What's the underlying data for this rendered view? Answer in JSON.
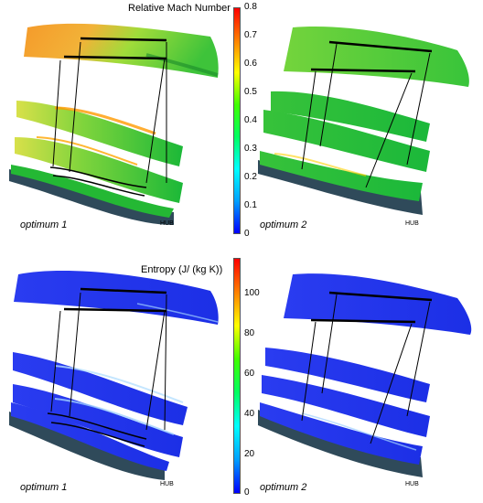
{
  "top": {
    "colorbar_title": "Relative Mach Number",
    "ticks": [
      "0.8",
      "0.7",
      "0.6",
      "0.5",
      "0.4",
      "0.3",
      "0.2",
      "0.1",
      "0"
    ],
    "left_caption": "optimum 1",
    "right_caption": "optimum 2",
    "hub_label_left": "HUB",
    "hub_label_right": "HUB"
  },
  "bottom": {
    "colorbar_title": "Entropy (J/ (kg K))",
    "ticks": [
      "100",
      "80",
      "60",
      "40",
      "20",
      "0"
    ],
    "left_caption": "optimum 1",
    "right_caption": "optimum 2",
    "hub_label_left": "HUB",
    "hub_label_right": "HUB"
  },
  "colormap": [
    "#0000ff",
    "#00a0ff",
    "#00ffff",
    "#00ff60",
    "#40ff00",
    "#ffff00",
    "#ff8000",
    "#ff0000"
  ]
}
